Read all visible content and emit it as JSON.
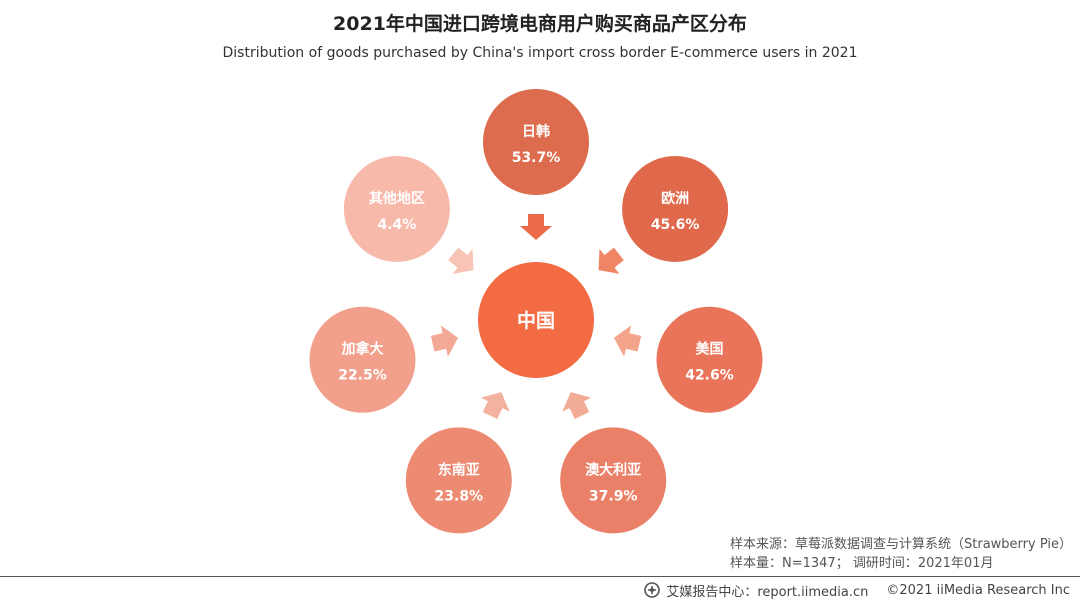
{
  "header": {
    "title": "2021年中国进口跨境电商用户购买商品产区分布",
    "subtitle": "Distribution of goods purchased by China's import cross border E-commerce users in 2021"
  },
  "chart_data": {
    "type": "bubble-radial",
    "center": {
      "label": "中国",
      "color": "#F26B43"
    },
    "categories": [
      "日韩",
      "欧洲",
      "美国",
      "澳大利亚",
      "东南亚",
      "加拿大",
      "其他地区"
    ],
    "values": [
      53.7,
      45.6,
      42.6,
      37.9,
      23.8,
      22.5,
      4.4
    ],
    "value_labels": [
      "53.7%",
      "45.6%",
      "42.6%",
      "37.9%",
      "23.8%",
      "22.5%",
      "4.4%"
    ],
    "unit": "%",
    "colors": [
      "#DD6C4F",
      "#E0694C",
      "#EA7459",
      "#EB8069",
      "#EC8A72",
      "#F2A08C",
      "#F7B9A9"
    ],
    "arrow_colors": [
      "#EB6A47",
      "#F08566",
      "#F3A48B",
      "#F2AC95",
      "#F3B29E",
      "#F3A995",
      "#F8C4B5"
    ]
  },
  "source": {
    "line1": "样本来源：草莓派数据调查与计算系统（Strawberry Pie）",
    "line2": "样本量：N=1347；  调研时间：2021年01月"
  },
  "footer": {
    "brand": "艾媒报告中心：report.iimedia.cn",
    "copyright": "©2021  iiMedia Research  Inc"
  }
}
